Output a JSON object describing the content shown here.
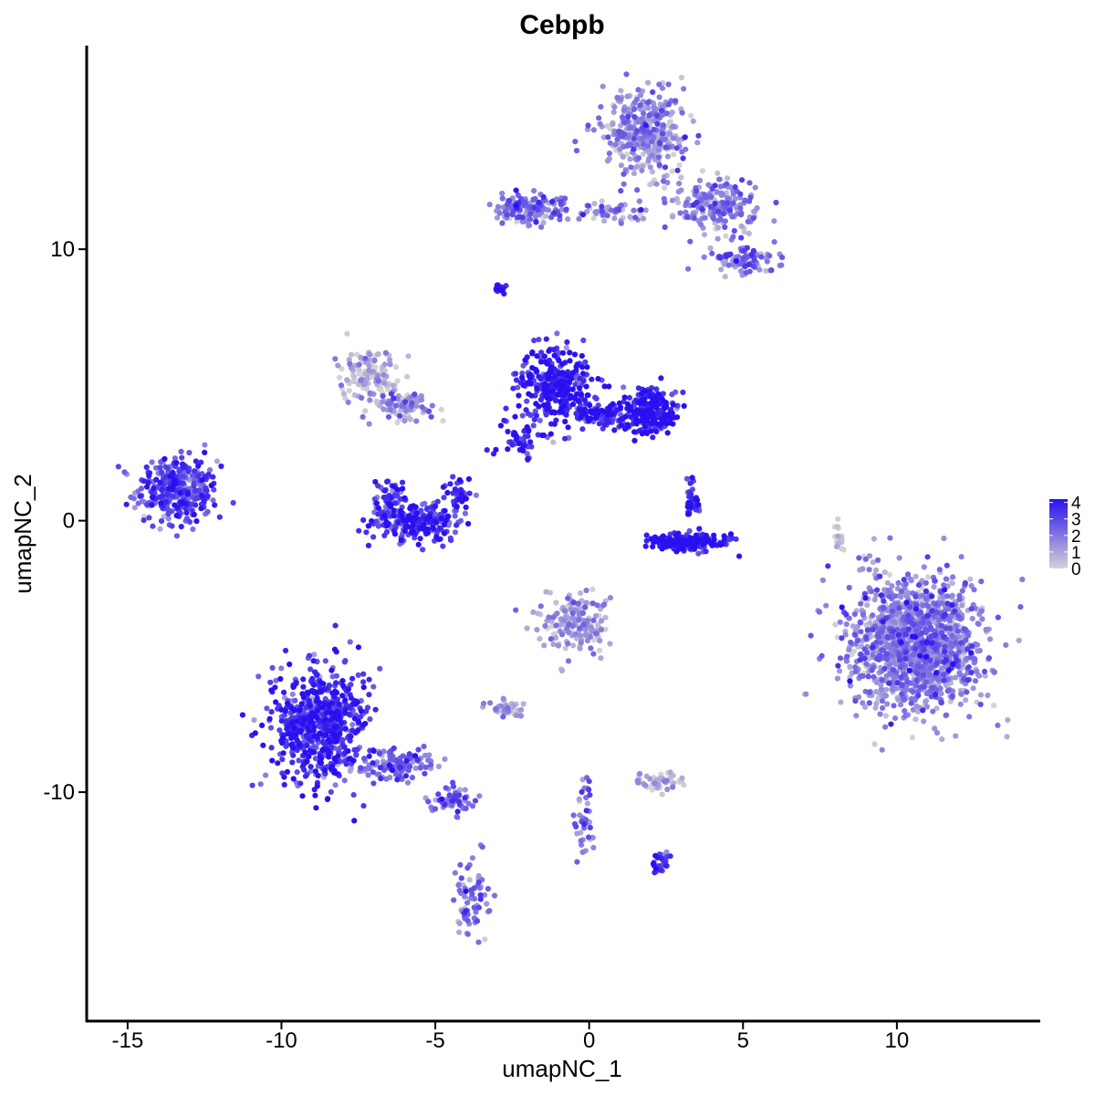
{
  "chart_data": {
    "type": "scatter",
    "title": "Cebpb",
    "xlabel": "umapNC_1",
    "ylabel": "umapNC_2",
    "xlim": [
      -16.3,
      14.6
    ],
    "ylim": [
      -18.4,
      17.5
    ],
    "x_ticks": [
      -15,
      -10,
      -5,
      0,
      5,
      10
    ],
    "x_tick_labels": [
      "-15",
      "-10",
      "-5",
      "0",
      "5",
      "10"
    ],
    "y_ticks": [
      -10,
      0,
      10
    ],
    "y_tick_labels": [
      "-10",
      "0",
      "10"
    ],
    "grid": false,
    "legend": {
      "position": "right",
      "type": "colorbar",
      "min": 0,
      "max": 4.2,
      "ticks": [
        0,
        1,
        2,
        3,
        4
      ],
      "tick_labels": [
        "0",
        "1",
        "2",
        "3",
        "4"
      ],
      "low_color": "#d3d3d3",
      "high_color": "#2a10f0"
    },
    "point_color_low": "#d3d3d3",
    "point_color_high": "#2a10f0",
    "clusters": [
      {
        "cx": -13.4,
        "cy": 1.1,
        "rx": 1.2,
        "ry": 1.1,
        "n": 350,
        "expr": 2.8
      },
      {
        "cx": -7.2,
        "cy": 5.4,
        "rx": 0.8,
        "ry": 0.9,
        "n": 130,
        "expr": 0.3
      },
      {
        "cx": -6.0,
        "cy": 4.2,
        "rx": 1.0,
        "ry": 0.6,
        "n": 90,
        "expr": 1.2
      },
      {
        "cx": -5.6,
        "cy": 0.0,
        "rx": 1.4,
        "ry": 0.7,
        "n": 240,
        "expr": 3.4
      },
      {
        "cx": -6.5,
        "cy": 0.9,
        "rx": 0.4,
        "ry": 0.6,
        "n": 50,
        "expr": 3.3
      },
      {
        "cx": -4.2,
        "cy": 1.0,
        "rx": 0.4,
        "ry": 0.5,
        "n": 40,
        "expr": 3.3
      },
      {
        "cx": -1.1,
        "cy": 5.0,
        "rx": 1.1,
        "ry": 1.2,
        "n": 300,
        "expr": 3.8
      },
      {
        "cx": 2.0,
        "cy": 4.1,
        "rx": 0.8,
        "ry": 0.8,
        "n": 230,
        "expr": 3.8
      },
      {
        "cx": 0.5,
        "cy": 3.9,
        "rx": 0.9,
        "ry": 0.4,
        "n": 100,
        "expr": 3.6
      },
      {
        "cx": -2.2,
        "cy": 3.0,
        "rx": 0.8,
        "ry": 0.6,
        "n": 50,
        "expr": 3.4
      },
      {
        "cx": 3.3,
        "cy": -0.8,
        "rx": 1.2,
        "ry": 0.3,
        "n": 180,
        "expr": 3.9
      },
      {
        "cx": 3.3,
        "cy": 0.6,
        "rx": 0.3,
        "ry": 0.7,
        "n": 40,
        "expr": 3.5
      },
      {
        "cx": -2.9,
        "cy": 8.6,
        "rx": 0.15,
        "ry": 0.2,
        "n": 20,
        "expr": 4.0
      },
      {
        "cx": 1.8,
        "cy": 14.3,
        "rx": 1.2,
        "ry": 1.3,
        "n": 380,
        "expr": 1.3
      },
      {
        "cx": 4.2,
        "cy": 11.6,
        "rx": 1.3,
        "ry": 0.9,
        "n": 200,
        "expr": 1.6
      },
      {
        "cx": 5.2,
        "cy": 9.6,
        "rx": 1.0,
        "ry": 0.4,
        "n": 90,
        "expr": 1.8
      },
      {
        "cx": -2.0,
        "cy": 11.5,
        "rx": 1.1,
        "ry": 0.5,
        "n": 150,
        "expr": 1.8
      },
      {
        "cx": 0.8,
        "cy": 11.4,
        "rx": 1.0,
        "ry": 0.4,
        "n": 50,
        "expr": 1.4
      },
      {
        "cx": -8.8,
        "cy": -7.5,
        "rx": 1.4,
        "ry": 2.0,
        "n": 620,
        "expr": 3.5
      },
      {
        "cx": -6.3,
        "cy": -9.0,
        "rx": 1.4,
        "ry": 0.5,
        "n": 120,
        "expr": 2.2
      },
      {
        "cx": -4.5,
        "cy": -10.3,
        "rx": 0.6,
        "ry": 0.4,
        "n": 60,
        "expr": 2.3
      },
      {
        "cx": -3.8,
        "cy": -13.8,
        "rx": 0.5,
        "ry": 1.4,
        "n": 70,
        "expr": 2.0
      },
      {
        "cx": -0.5,
        "cy": -3.8,
        "rx": 1.0,
        "ry": 1.0,
        "n": 180,
        "expr": 1.0
      },
      {
        "cx": -2.7,
        "cy": -6.9,
        "rx": 0.6,
        "ry": 0.3,
        "n": 40,
        "expr": 0.8
      },
      {
        "cx": 2.3,
        "cy": -9.6,
        "rx": 0.7,
        "ry": 0.3,
        "n": 60,
        "expr": 0.4
      },
      {
        "cx": 2.3,
        "cy": -12.6,
        "rx": 0.3,
        "ry": 0.4,
        "n": 25,
        "expr": 3.3
      },
      {
        "cx": 10.6,
        "cy": -4.5,
        "rx": 2.0,
        "ry": 2.2,
        "n": 1400,
        "expr": 1.6
      },
      {
        "cx": 8.1,
        "cy": -0.6,
        "rx": 0.12,
        "ry": 0.5,
        "n": 20,
        "expr": 0.1
      },
      {
        "cx": -0.2,
        "cy": -11.0,
        "rx": 0.3,
        "ry": 1.5,
        "n": 40,
        "expr": 1.8
      }
    ]
  }
}
